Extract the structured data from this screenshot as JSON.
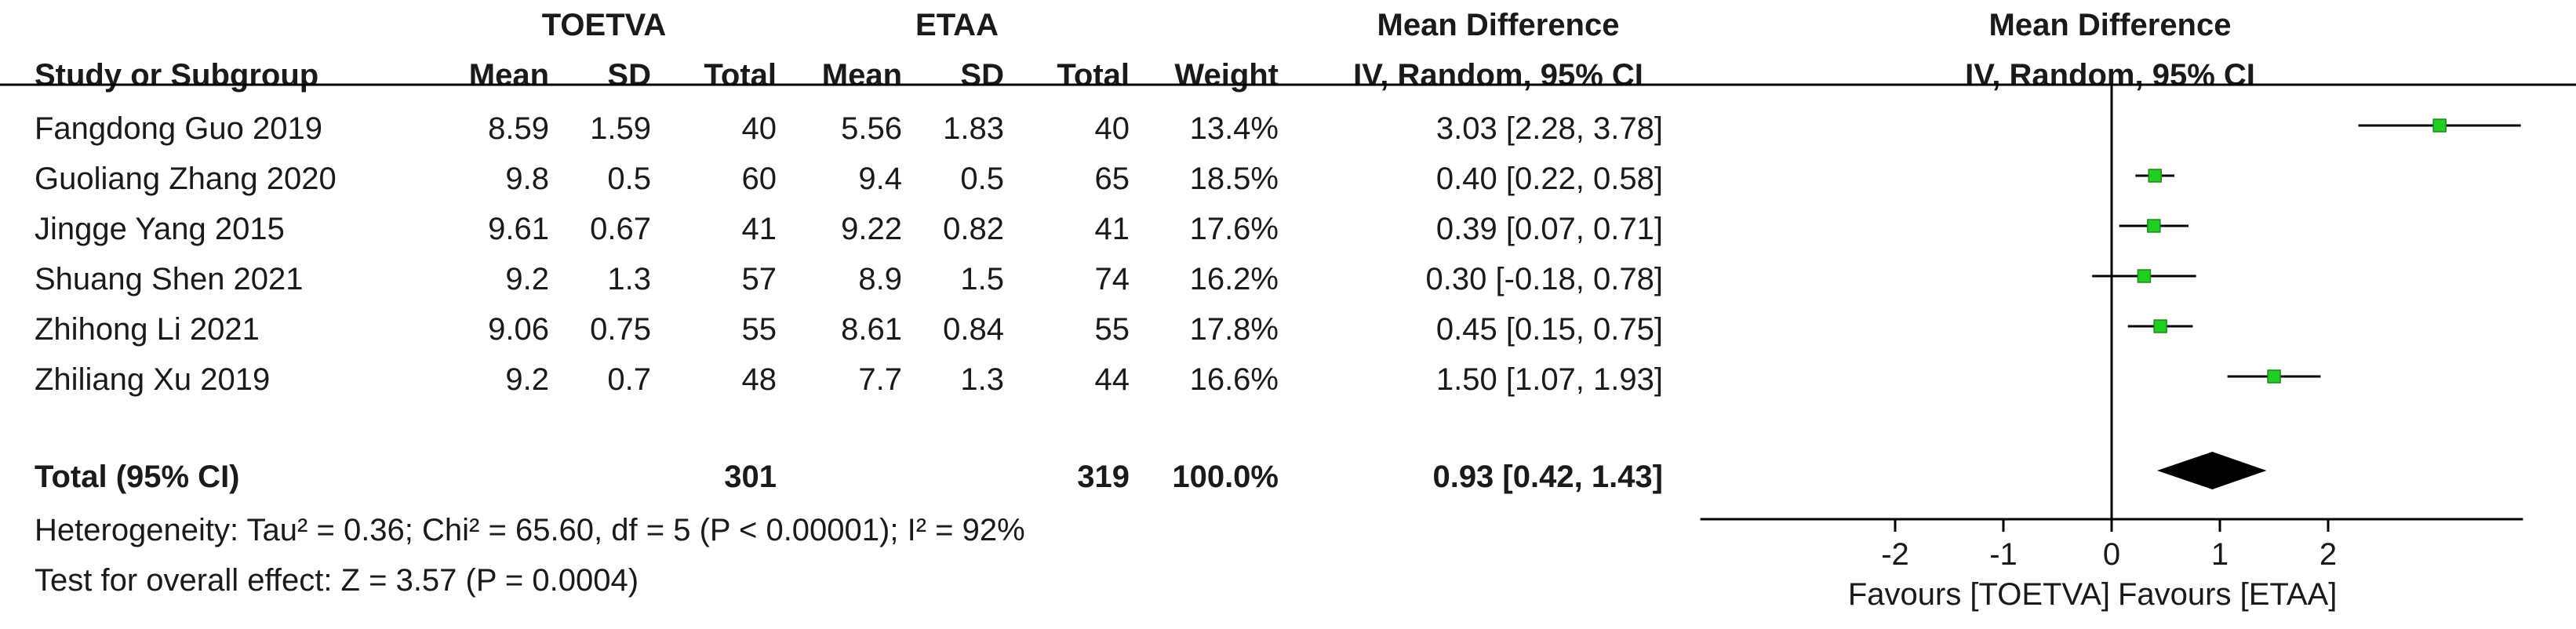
{
  "header": {
    "group1": "TOETVA",
    "group2": "ETAA",
    "md_title": "Mean Difference",
    "plot_title": "Mean Difference",
    "col_study": "Study or Subgroup",
    "col_mean1": "Mean",
    "col_sd1": "SD",
    "col_total1": "Total",
    "col_mean2": "Mean",
    "col_sd2": "SD",
    "col_total2": "Total",
    "col_weight": "Weight",
    "col_ci": "IV, Random, 95% CI",
    "plot_subtitle": "IV, Random, 95% CI"
  },
  "studies": [
    {
      "name": "Fangdong Guo 2019",
      "mean1": "8.59",
      "sd1": "1.59",
      "total1": "40",
      "mean2": "5.56",
      "sd2": "1.83",
      "total2": "40",
      "weight": "13.4%",
      "ci": "3.03 [2.28, 3.78]"
    },
    {
      "name": "Guoliang Zhang 2020",
      "mean1": "9.8",
      "sd1": "0.5",
      "total1": "60",
      "mean2": "9.4",
      "sd2": "0.5",
      "total2": "65",
      "weight": "18.5%",
      "ci": "0.40 [0.22, 0.58]"
    },
    {
      "name": "Jingge Yang 2015",
      "mean1": "9.61",
      "sd1": "0.67",
      "total1": "41",
      "mean2": "9.22",
      "sd2": "0.82",
      "total2": "41",
      "weight": "17.6%",
      "ci": "0.39 [0.07, 0.71]"
    },
    {
      "name": "Shuang Shen 2021",
      "mean1": "9.2",
      "sd1": "1.3",
      "total1": "57",
      "mean2": "8.9",
      "sd2": "1.5",
      "total2": "74",
      "weight": "16.2%",
      "ci": "0.30 [-0.18, 0.78]"
    },
    {
      "name": "Zhihong Li 2021",
      "mean1": "9.06",
      "sd1": "0.75",
      "total1": "55",
      "mean2": "8.61",
      "sd2": "0.84",
      "total2": "55",
      "weight": "17.8%",
      "ci": "0.45 [0.15, 0.75]"
    },
    {
      "name": "Zhiliang Xu 2019",
      "mean1": "9.2",
      "sd1": "0.7",
      "total1": "48",
      "mean2": "7.7",
      "sd2": "1.3",
      "total2": "44",
      "weight": "16.6%",
      "ci": "1.50 [1.07, 1.93]"
    }
  ],
  "total": {
    "label": "Total (95% CI)",
    "total1": "301",
    "total2": "319",
    "weight": "100.0%",
    "ci": "0.93 [0.42, 1.43]"
  },
  "heterogeneity": "Heterogeneity: Tau² = 0.36; Chi² = 65.60, df = 5 (P < 0.00001); I² = 92%",
  "overall_effect": "Test for overall effect: Z = 3.57 (P = 0.0004)",
  "favours_left": "Favours [TOETVA]",
  "favours_right": "Favours [ETAA]",
  "colors": {
    "square": "#22cc22",
    "square_edge": "#1a8a1a",
    "diamond": "#000000",
    "line": "#000000"
  },
  "chart_data": {
    "type": "forest",
    "title": "Mean Difference",
    "subtitle": "IV, Random, 95% CI",
    "x_ticks": [
      -2,
      -1,
      0,
      1,
      2
    ],
    "xlim": [
      -3.8,
      3.8
    ],
    "studies": [
      {
        "name": "Fangdong Guo 2019",
        "md": 3.03,
        "lo": 2.28,
        "hi": 3.78,
        "weight": 13.4
      },
      {
        "name": "Guoliang Zhang 2020",
        "md": 0.4,
        "lo": 0.22,
        "hi": 0.58,
        "weight": 18.5
      },
      {
        "name": "Jingge Yang 2015",
        "md": 0.39,
        "lo": 0.07,
        "hi": 0.71,
        "weight": 17.6
      },
      {
        "name": "Shuang Shen 2021",
        "md": 0.3,
        "lo": -0.18,
        "hi": 0.78,
        "weight": 16.2
      },
      {
        "name": "Zhihong Li 2021",
        "md": 0.45,
        "lo": 0.15,
        "hi": 0.75,
        "weight": 17.8
      },
      {
        "name": "Zhiliang Xu 2019",
        "md": 1.5,
        "lo": 1.07,
        "hi": 1.93,
        "weight": 16.6
      }
    ],
    "pooled": {
      "md": 0.93,
      "lo": 0.42,
      "hi": 1.43
    }
  }
}
